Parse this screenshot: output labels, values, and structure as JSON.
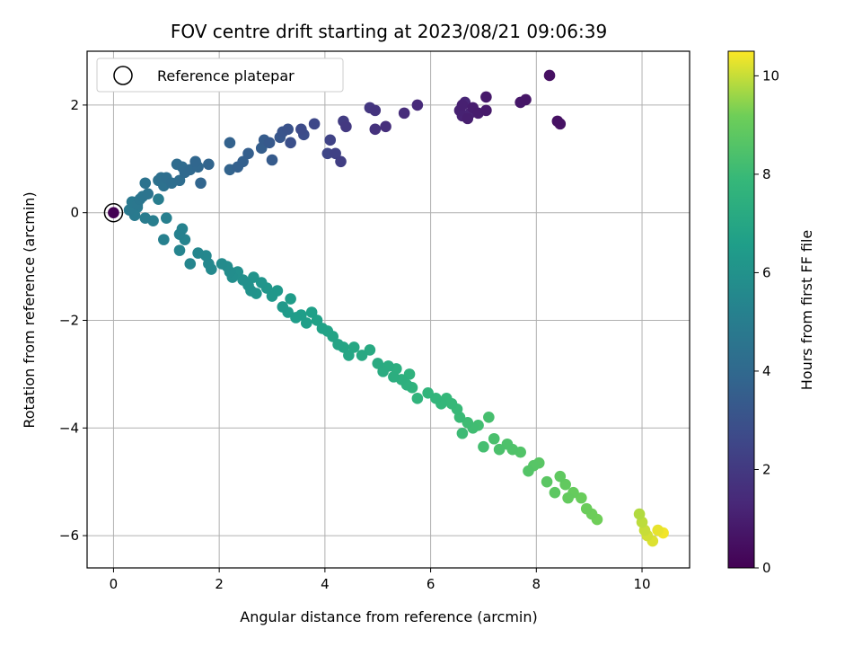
{
  "chart_data": {
    "type": "scatter",
    "title": "FOV centre drift starting at 2023/08/21 09:06:39",
    "xlabel": "Angular distance from reference (arcmin)",
    "ylabel": "Rotation from reference (arcmin)",
    "xlim": [
      -0.5,
      10.9
    ],
    "ylim": [
      -6.6,
      3.0
    ],
    "xticks": [
      0,
      2,
      4,
      6,
      8,
      10
    ],
    "yticks": [
      -6,
      -4,
      -2,
      0,
      2
    ],
    "grid": true,
    "legend": {
      "placement": "top-left",
      "entries": [
        "Reference platepar"
      ]
    },
    "colorbar": {
      "label": "Hours from first FF file",
      "colormap": "viridis",
      "range": [
        0,
        10.5
      ],
      "ticks": [
        0,
        2,
        4,
        6,
        8,
        10
      ]
    },
    "reference_point": {
      "x": 0,
      "y": 0
    },
    "points_columns": [
      "x",
      "y",
      "hours"
    ],
    "points": [
      [
        0.0,
        0.0,
        0.0
      ],
      [
        8.25,
        2.55,
        0.5
      ],
      [
        8.4,
        1.7,
        0.55
      ],
      [
        8.45,
        1.65,
        0.6
      ],
      [
        7.8,
        2.1,
        0.7
      ],
      [
        7.7,
        2.05,
        0.75
      ],
      [
        7.05,
        2.15,
        0.8
      ],
      [
        7.05,
        1.9,
        0.85
      ],
      [
        6.9,
        1.85,
        0.9
      ],
      [
        6.8,
        1.95,
        0.95
      ],
      [
        6.7,
        1.75,
        1.0
      ],
      [
        6.6,
        2.0,
        1.05
      ],
      [
        6.55,
        1.9,
        1.1
      ],
      [
        6.6,
        1.8,
        1.15
      ],
      [
        6.75,
        1.85,
        1.2
      ],
      [
        6.65,
        2.05,
        1.25
      ],
      [
        5.75,
        2.0,
        1.4
      ],
      [
        5.5,
        1.85,
        1.5
      ],
      [
        5.15,
        1.6,
        1.6
      ],
      [
        4.95,
        1.55,
        1.7
      ],
      [
        4.95,
        1.9,
        1.8
      ],
      [
        4.85,
        1.95,
        1.9
      ],
      [
        4.4,
        1.6,
        2.0
      ],
      [
        4.35,
        1.7,
        2.1
      ],
      [
        4.3,
        0.95,
        2.2
      ],
      [
        4.2,
        1.1,
        2.3
      ],
      [
        4.1,
        1.35,
        2.4
      ],
      [
        4.05,
        1.1,
        2.5
      ],
      [
        3.8,
        1.65,
        2.6
      ],
      [
        3.55,
        1.55,
        2.7
      ],
      [
        3.6,
        1.45,
        2.8
      ],
      [
        3.35,
        1.3,
        2.9
      ],
      [
        3.3,
        1.55,
        3.0
      ],
      [
        3.2,
        1.5,
        3.1
      ],
      [
        3.15,
        1.4,
        3.2
      ],
      [
        2.95,
        1.3,
        3.3
      ],
      [
        3.0,
        0.98,
        3.4
      ],
      [
        2.85,
        1.35,
        3.45
      ],
      [
        2.8,
        1.2,
        3.5
      ],
      [
        2.55,
        1.1,
        3.55
      ],
      [
        2.45,
        0.95,
        3.6
      ],
      [
        2.35,
        0.85,
        3.65
      ],
      [
        2.2,
        1.3,
        3.7
      ],
      [
        2.2,
        0.8,
        3.75
      ],
      [
        1.8,
        0.9,
        3.8
      ],
      [
        1.65,
        0.55,
        3.85
      ],
      [
        1.55,
        0.95,
        3.9
      ],
      [
        1.6,
        0.85,
        3.95
      ],
      [
        1.45,
        0.8,
        4.0
      ],
      [
        1.35,
        0.75,
        4.05
      ],
      [
        1.3,
        0.85,
        4.1
      ],
      [
        1.2,
        0.9,
        4.15
      ],
      [
        1.25,
        0.6,
        4.2
      ],
      [
        1.1,
        0.55,
        4.25
      ],
      [
        1.0,
        0.65,
        4.3
      ],
      [
        0.9,
        0.65,
        4.35
      ],
      [
        0.95,
        0.5,
        4.4
      ],
      [
        0.85,
        0.6,
        4.45
      ],
      [
        0.6,
        0.55,
        4.5
      ],
      [
        0.65,
        0.35,
        4.55
      ],
      [
        0.55,
        0.3,
        4.6
      ],
      [
        0.5,
        0.25,
        4.65
      ],
      [
        0.45,
        0.15,
        4.7
      ],
      [
        0.35,
        0.2,
        4.75
      ],
      [
        0.3,
        0.05,
        4.8
      ],
      [
        0.4,
        -0.05,
        4.85
      ],
      [
        0.45,
        0.1,
        4.9
      ],
      [
        0.6,
        -0.1,
        4.95
      ],
      [
        0.85,
        0.25,
        5.0
      ],
      [
        0.75,
        -0.15,
        5.05
      ],
      [
        1.0,
        -0.1,
        5.1
      ],
      [
        0.95,
        -0.5,
        5.15
      ],
      [
        1.25,
        -0.4,
        5.2
      ],
      [
        1.3,
        -0.3,
        5.25
      ],
      [
        1.35,
        -0.5,
        5.3
      ],
      [
        1.25,
        -0.7,
        5.35
      ],
      [
        1.45,
        -0.95,
        5.4
      ],
      [
        1.6,
        -0.75,
        5.45
      ],
      [
        1.75,
        -0.8,
        5.5
      ],
      [
        1.8,
        -0.95,
        5.55
      ],
      [
        1.85,
        -1.05,
        5.6
      ],
      [
        2.05,
        -0.95,
        5.65
      ],
      [
        2.15,
        -1.0,
        5.7
      ],
      [
        2.2,
        -1.1,
        5.75
      ],
      [
        2.25,
        -1.2,
        5.8
      ],
      [
        2.35,
        -1.1,
        5.85
      ],
      [
        2.45,
        -1.25,
        5.9
      ],
      [
        2.55,
        -1.35,
        5.95
      ],
      [
        2.6,
        -1.45,
        6.0
      ],
      [
        2.65,
        -1.2,
        6.05
      ],
      [
        2.7,
        -1.5,
        6.1
      ],
      [
        2.8,
        -1.3,
        6.15
      ],
      [
        2.9,
        -1.4,
        6.2
      ],
      [
        3.0,
        -1.55,
        6.25
      ],
      [
        3.1,
        -1.45,
        6.3
      ],
      [
        3.2,
        -1.75,
        6.35
      ],
      [
        3.3,
        -1.85,
        6.4
      ],
      [
        3.35,
        -1.6,
        6.45
      ],
      [
        3.45,
        -1.95,
        6.5
      ],
      [
        3.55,
        -1.9,
        6.55
      ],
      [
        3.65,
        -2.05,
        6.6
      ],
      [
        3.75,
        -1.85,
        6.65
      ],
      [
        3.85,
        -2.0,
        6.7
      ],
      [
        3.95,
        -2.15,
        6.75
      ],
      [
        4.05,
        -2.2,
        6.8
      ],
      [
        4.15,
        -2.3,
        6.85
      ],
      [
        4.25,
        -2.45,
        6.9
      ],
      [
        4.35,
        -2.5,
        6.95
      ],
      [
        4.45,
        -2.65,
        7.0
      ],
      [
        4.55,
        -2.5,
        7.05
      ],
      [
        4.7,
        -2.65,
        7.1
      ],
      [
        4.85,
        -2.55,
        7.15
      ],
      [
        5.0,
        -2.8,
        7.2
      ],
      [
        5.1,
        -2.95,
        7.25
      ],
      [
        5.2,
        -2.85,
        7.3
      ],
      [
        5.3,
        -3.05,
        7.35
      ],
      [
        5.35,
        -2.9,
        7.4
      ],
      [
        5.45,
        -3.1,
        7.45
      ],
      [
        5.55,
        -3.2,
        7.5
      ],
      [
        5.6,
        -3.0,
        7.55
      ],
      [
        5.65,
        -3.25,
        7.6
      ],
      [
        5.75,
        -3.45,
        7.65
      ],
      [
        5.95,
        -3.35,
        7.7
      ],
      [
        6.1,
        -3.45,
        7.75
      ],
      [
        6.2,
        -3.55,
        7.8
      ],
      [
        6.3,
        -3.45,
        7.85
      ],
      [
        6.4,
        -3.55,
        7.9
      ],
      [
        6.5,
        -3.65,
        7.95
      ],
      [
        6.55,
        -3.8,
        8.0
      ],
      [
        6.6,
        -4.1,
        8.05
      ],
      [
        6.7,
        -3.9,
        8.1
      ],
      [
        6.8,
        -4.0,
        8.15
      ],
      [
        6.9,
        -3.95,
        8.2
      ],
      [
        7.0,
        -4.35,
        8.25
      ],
      [
        7.1,
        -3.8,
        8.3
      ],
      [
        7.2,
        -4.2,
        8.35
      ],
      [
        7.3,
        -4.4,
        8.4
      ],
      [
        7.45,
        -4.3,
        8.45
      ],
      [
        7.55,
        -4.4,
        8.5
      ],
      [
        7.7,
        -4.45,
        8.55
      ],
      [
        7.85,
        -4.8,
        8.6
      ],
      [
        7.95,
        -4.7,
        8.65
      ],
      [
        8.05,
        -4.65,
        8.7
      ],
      [
        8.2,
        -5.0,
        8.75
      ],
      [
        8.35,
        -5.2,
        8.8
      ],
      [
        8.45,
        -4.9,
        8.85
      ],
      [
        8.55,
        -5.05,
        8.9
      ],
      [
        8.6,
        -5.3,
        8.95
      ],
      [
        8.7,
        -5.2,
        9.0
      ],
      [
        8.85,
        -5.3,
        9.05
      ],
      [
        8.95,
        -5.5,
        9.1
      ],
      [
        9.05,
        -5.6,
        9.15
      ],
      [
        9.15,
        -5.7,
        9.2
      ],
      [
        9.95,
        -5.6,
        9.8
      ],
      [
        10.0,
        -5.75,
        9.9
      ],
      [
        10.05,
        -5.9,
        10.0
      ],
      [
        10.1,
        -6.0,
        10.1
      ],
      [
        10.2,
        -6.1,
        10.2
      ],
      [
        10.3,
        -5.9,
        10.3
      ],
      [
        10.4,
        -5.95,
        10.4
      ]
    ]
  }
}
